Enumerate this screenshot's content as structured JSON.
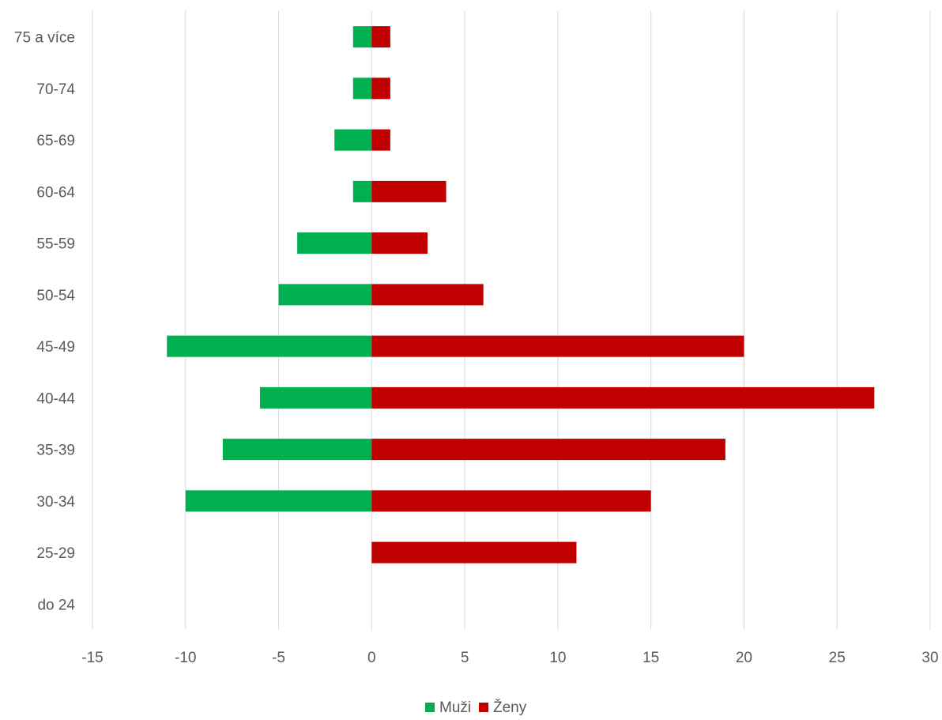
{
  "chart_data": {
    "type": "bar",
    "orientation": "horizontal",
    "stacked": true,
    "title": "",
    "xlabel": "",
    "ylabel": "",
    "categories": [
      "do 24",
      "25-29",
      "30-34",
      "35-39",
      "40-44",
      "45-49",
      "50-54",
      "55-59",
      "60-64",
      "65-69",
      "70-74",
      "75 a více"
    ],
    "series": [
      {
        "name": "Muži",
        "color": "#00B050",
        "values": [
          0,
          0,
          -10,
          -8,
          -6,
          -11,
          -5,
          -4,
          -1,
          -2,
          -1,
          -1
        ]
      },
      {
        "name": "Ženy",
        "color": "#C00000",
        "values": [
          0,
          11,
          15,
          19,
          27,
          20,
          6,
          3,
          4,
          1,
          1,
          1
        ]
      }
    ],
    "xlim": [
      -15,
      30
    ],
    "xticks": [
      "-15",
      "-10",
      "-5",
      "0",
      "5",
      "10",
      "15",
      "20",
      "25",
      "30"
    ],
    "grid": "vertical",
    "legend": "bottom"
  }
}
